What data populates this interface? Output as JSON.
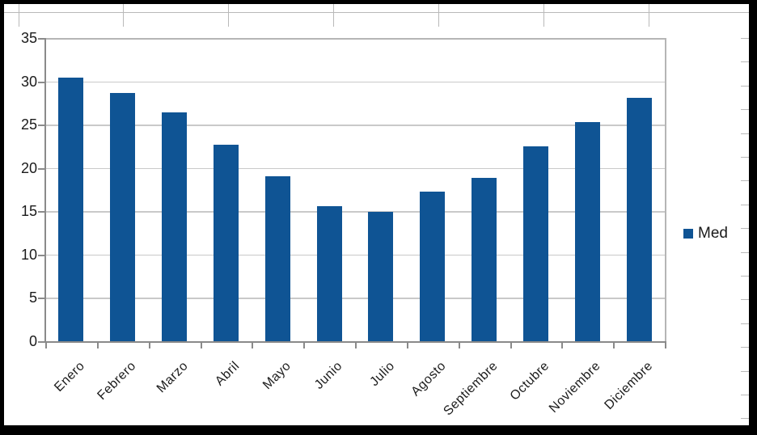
{
  "chart_data": {
    "type": "bar",
    "title": "",
    "xlabel": "",
    "ylabel": "",
    "categories": [
      "Enero",
      "Febrero",
      "Marzo",
      "Abril",
      "Mayo",
      "Junio",
      "Julio",
      "Agosto",
      "Septiembre",
      "Octubre",
      "Noviembre",
      "Diciembre"
    ],
    "series": [
      {
        "name": "Med",
        "values": [
          30.4,
          28.7,
          26.4,
          22.7,
          19.0,
          15.6,
          14.9,
          17.3,
          18.9,
          22.5,
          25.3,
          28.1
        ]
      }
    ],
    "ylim": [
      0,
      35
    ],
    "yticks": [
      0,
      5,
      10,
      15,
      20,
      25,
      30,
      35
    ],
    "grid": true,
    "legend_position": "right",
    "bar_color": "#0F5494",
    "grid_color": "#c9c9c9",
    "axis_color": "#8a8a8a",
    "plot_border_color": "#b5b5b5",
    "label_color": "#1b1b1b",
    "sheet_line_color": "#b9b9b9",
    "frame_color": "#000000",
    "background_color": "#ffffff"
  }
}
